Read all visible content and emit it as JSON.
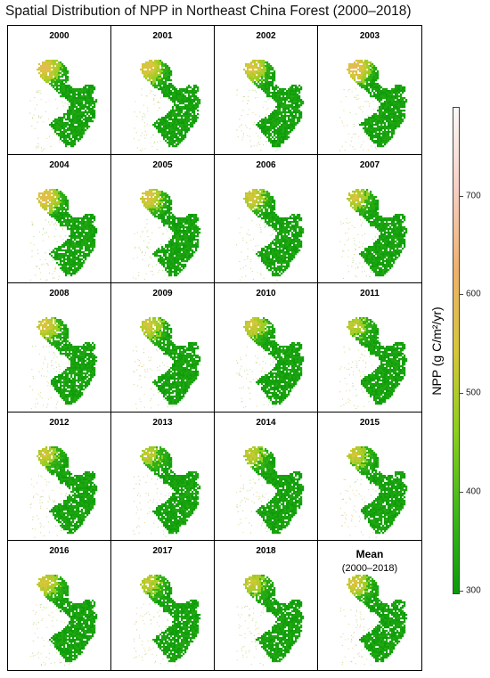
{
  "title": "Spatial Distribution of NPP in Northeast China Forest (2000–2018)",
  "panels": [
    {
      "label": "2000",
      "nw": 0.78
    },
    {
      "label": "2001",
      "nw": 0.72
    },
    {
      "label": "2002",
      "nw": 0.7
    },
    {
      "label": "2003",
      "nw": 0.88
    },
    {
      "label": "2004",
      "nw": 0.8
    },
    {
      "label": "2005",
      "nw": 0.7
    },
    {
      "label": "2006",
      "nw": 0.62
    },
    {
      "label": "2007",
      "nw": 0.58
    },
    {
      "label": "2008",
      "nw": 0.66
    },
    {
      "label": "2009",
      "nw": 0.6
    },
    {
      "label": "2010",
      "nw": 0.62
    },
    {
      "label": "2011",
      "nw": 0.5
    },
    {
      "label": "2012",
      "nw": 0.54
    },
    {
      "label": "2013",
      "nw": 0.5
    },
    {
      "label": "2014",
      "nw": 0.52
    },
    {
      "label": "2015",
      "nw": 0.56
    },
    {
      "label": "2016",
      "nw": 0.6
    },
    {
      "label": "2017",
      "nw": 0.52
    },
    {
      "label": "2018",
      "nw": 0.55
    }
  ],
  "mean_panel": {
    "label": "Mean",
    "sublabel": "(2000–2018)",
    "nw": 0.62
  },
  "legend": {
    "title": "NPP (g C/m²/yr)",
    "min": 296,
    "max": 790,
    "ticks": [
      "300",
      "400",
      "500",
      "600",
      "700"
    ],
    "colors": [
      "#0a9a0a",
      "#3fb81a",
      "#8ccf1e",
      "#d7c63a",
      "#eeb06d",
      "#f6cfc4",
      "#fbf9f8"
    ]
  }
}
